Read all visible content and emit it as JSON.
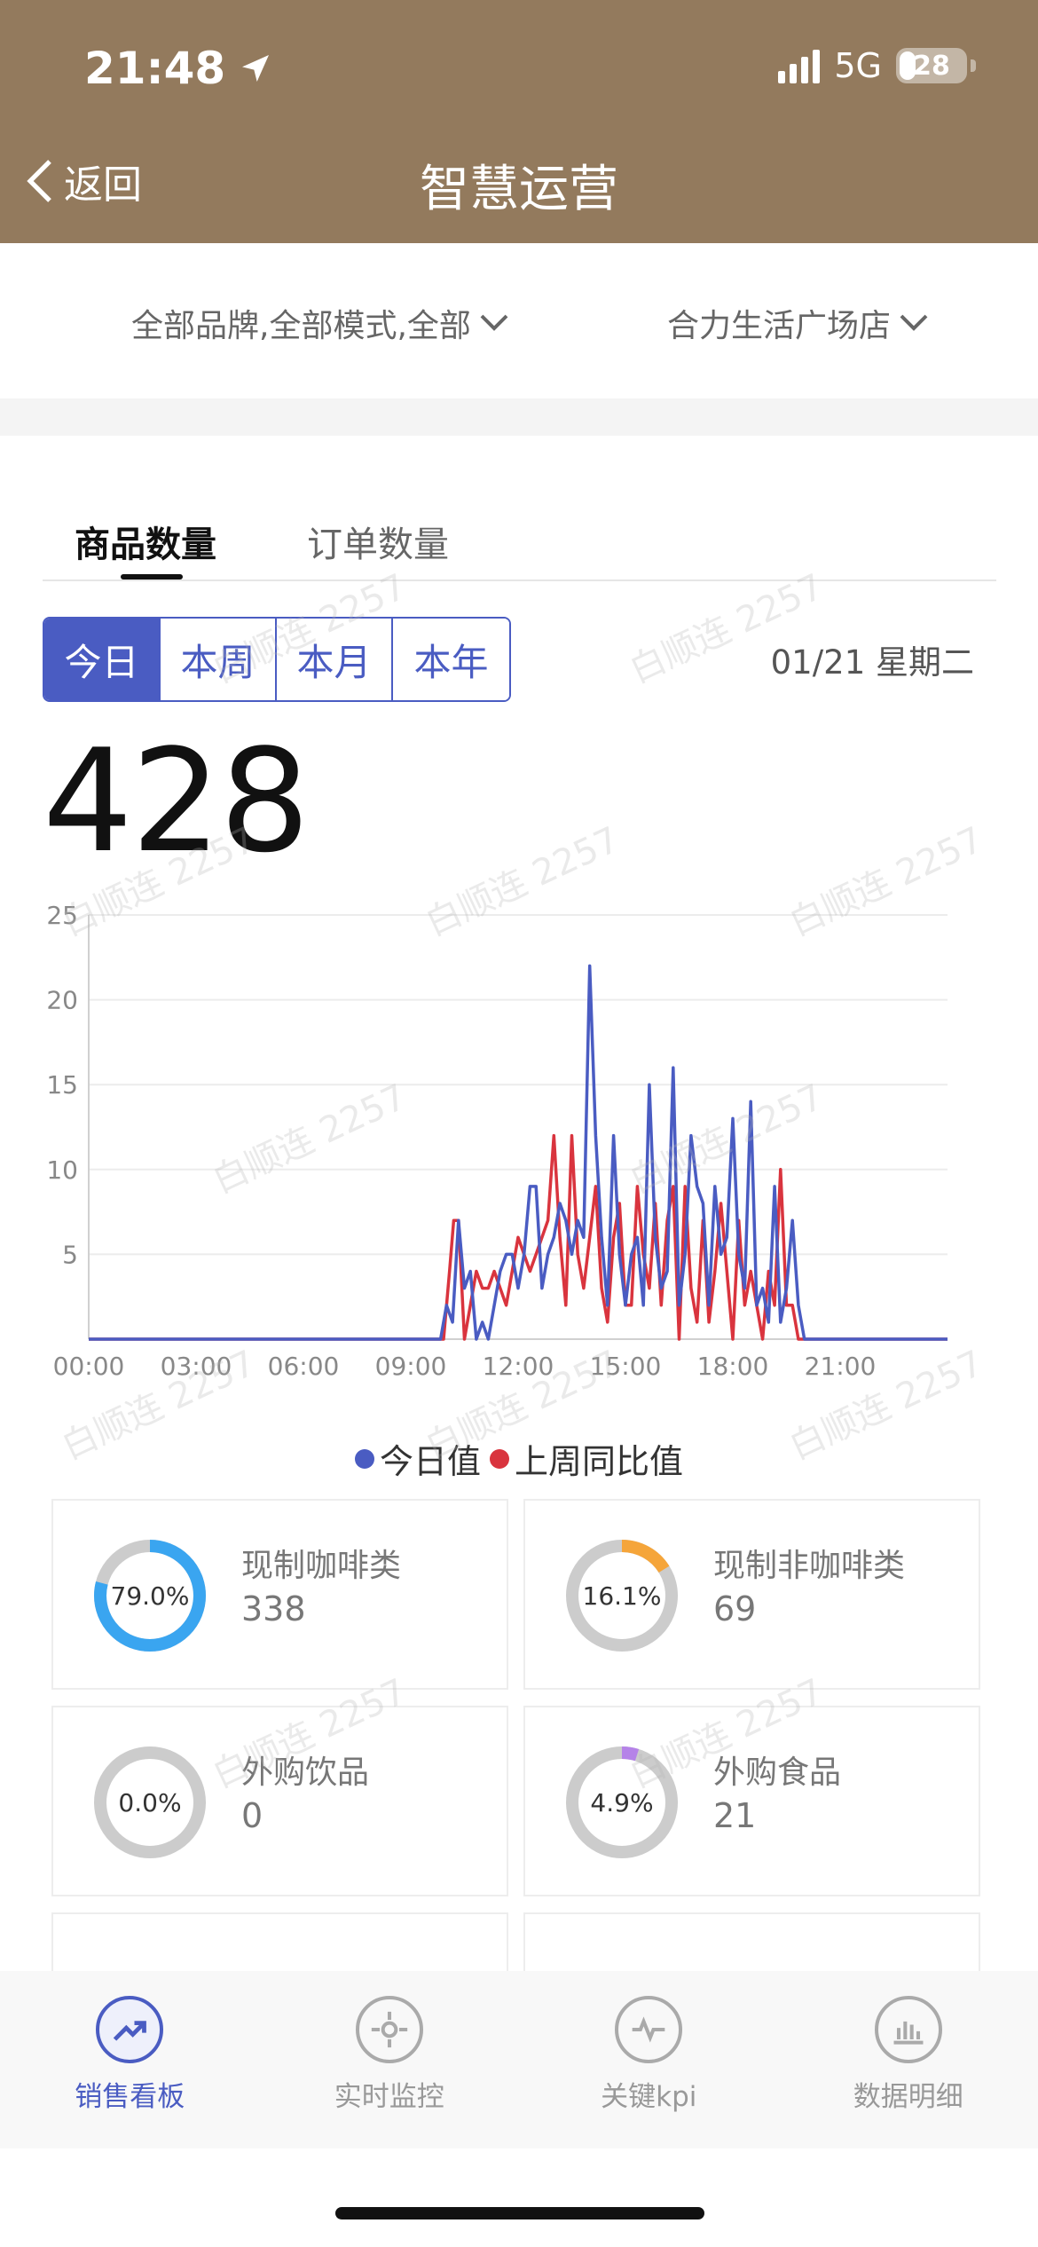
{
  "status_bar": {
    "time": "21:48",
    "network": "5G",
    "battery": "28"
  },
  "nav": {
    "back_label": "返回",
    "title": "智慧运营"
  },
  "filters": {
    "brand_mode": "全部品牌,全部模式,全部",
    "store": "合力生活广场店"
  },
  "tabs": [
    {
      "label": "商品数量",
      "active": true
    },
    {
      "label": "订单数量",
      "active": false
    }
  ],
  "period_buttons": [
    {
      "label": "今日",
      "active": true
    },
    {
      "label": "本周"
    },
    {
      "label": "本月"
    },
    {
      "label": "本年"
    }
  ],
  "date_label": "01/21 星期二",
  "total_value": "428",
  "watermark_text": "白顺连 2257",
  "chart_data": {
    "type": "line",
    "x_tick_labels": [
      "00:00",
      "03:00",
      "06:00",
      "09:00",
      "12:00",
      "15:00",
      "18:00",
      "21:00"
    ],
    "y_tick_labels": [
      "5",
      "10",
      "15",
      "20",
      "25"
    ],
    "ylim": [
      0,
      25
    ],
    "x_range_minutes": [
      0,
      1440
    ],
    "grid": true,
    "legend_position": "bottom",
    "series": [
      {
        "name": "今日值",
        "color": "#4a5cc2",
        "points": [
          [
            0,
            0
          ],
          [
            590,
            0
          ],
          [
            600,
            2
          ],
          [
            610,
            1
          ],
          [
            620,
            7
          ],
          [
            630,
            3
          ],
          [
            640,
            4
          ],
          [
            650,
            0
          ],
          [
            660,
            1
          ],
          [
            670,
            0
          ],
          [
            680,
            2
          ],
          [
            690,
            4
          ],
          [
            700,
            5
          ],
          [
            710,
            5
          ],
          [
            720,
            3
          ],
          [
            730,
            5
          ],
          [
            740,
            9
          ],
          [
            750,
            9
          ],
          [
            760,
            3
          ],
          [
            770,
            5
          ],
          [
            780,
            6
          ],
          [
            790,
            8
          ],
          [
            800,
            7
          ],
          [
            810,
            5
          ],
          [
            820,
            7
          ],
          [
            830,
            6
          ],
          [
            840,
            22
          ],
          [
            850,
            12
          ],
          [
            860,
            6
          ],
          [
            870,
            2
          ],
          [
            880,
            12
          ],
          [
            890,
            5
          ],
          [
            900,
            2
          ],
          [
            910,
            5
          ],
          [
            920,
            6
          ],
          [
            930,
            2
          ],
          [
            940,
            15
          ],
          [
            950,
            6
          ],
          [
            960,
            3
          ],
          [
            970,
            4
          ],
          [
            980,
            16
          ],
          [
            990,
            2
          ],
          [
            1000,
            5
          ],
          [
            1010,
            12
          ],
          [
            1020,
            9
          ],
          [
            1030,
            8
          ],
          [
            1040,
            2
          ],
          [
            1050,
            9
          ],
          [
            1060,
            5
          ],
          [
            1070,
            6
          ],
          [
            1080,
            13
          ],
          [
            1090,
            5
          ],
          [
            1100,
            3
          ],
          [
            1110,
            14
          ],
          [
            1120,
            2
          ],
          [
            1130,
            3
          ],
          [
            1140,
            1
          ],
          [
            1150,
            9
          ],
          [
            1160,
            1
          ],
          [
            1170,
            3
          ],
          [
            1180,
            7
          ],
          [
            1190,
            2
          ],
          [
            1200,
            0
          ],
          [
            1440,
            0
          ]
        ]
      },
      {
        "name": "上周同比值",
        "color": "#d9343e",
        "points": [
          [
            0,
            0
          ],
          [
            595,
            0
          ],
          [
            605,
            4
          ],
          [
            612,
            7
          ],
          [
            620,
            7
          ],
          [
            630,
            0
          ],
          [
            640,
            2
          ],
          [
            650,
            4
          ],
          [
            660,
            3
          ],
          [
            670,
            3
          ],
          [
            680,
            4
          ],
          [
            690,
            3
          ],
          [
            700,
            2
          ],
          [
            710,
            4
          ],
          [
            720,
            6
          ],
          [
            730,
            5
          ],
          [
            740,
            4
          ],
          [
            750,
            5
          ],
          [
            760,
            6
          ],
          [
            770,
            7
          ],
          [
            780,
            12
          ],
          [
            790,
            6
          ],
          [
            800,
            2
          ],
          [
            810,
            12
          ],
          [
            820,
            5
          ],
          [
            830,
            3
          ],
          [
            840,
            6
          ],
          [
            850,
            9
          ],
          [
            860,
            3
          ],
          [
            870,
            1
          ],
          [
            880,
            6
          ],
          [
            890,
            8
          ],
          [
            900,
            2
          ],
          [
            910,
            2
          ],
          [
            920,
            9
          ],
          [
            930,
            5
          ],
          [
            940,
            3
          ],
          [
            950,
            8
          ],
          [
            960,
            2
          ],
          [
            970,
            7
          ],
          [
            980,
            9
          ],
          [
            990,
            0
          ],
          [
            1000,
            9
          ],
          [
            1010,
            3
          ],
          [
            1020,
            1
          ],
          [
            1030,
            7
          ],
          [
            1040,
            1
          ],
          [
            1050,
            4
          ],
          [
            1060,
            8
          ],
          [
            1070,
            4
          ],
          [
            1080,
            0
          ],
          [
            1090,
            7
          ],
          [
            1100,
            2
          ],
          [
            1110,
            4
          ],
          [
            1120,
            2
          ],
          [
            1130,
            0
          ],
          [
            1140,
            4
          ],
          [
            1150,
            2
          ],
          [
            1160,
            10
          ],
          [
            1170,
            2
          ],
          [
            1180,
            2
          ],
          [
            1190,
            0
          ],
          [
            1440,
            0
          ]
        ]
      }
    ]
  },
  "categories": [
    {
      "name": "现制咖啡类",
      "value": "338",
      "percent_label": "79.0%",
      "percent": 79.0,
      "color": "#3aa5f0"
    },
    {
      "name": "现制非咖啡类",
      "value": "69",
      "percent_label": "16.1%",
      "percent": 16.1,
      "color": "#f5a53a"
    },
    {
      "name": "外购饮品",
      "value": "0",
      "percent_label": "0.0%",
      "percent": 0.0,
      "color": "#cccccc"
    },
    {
      "name": "外购食品",
      "value": "21",
      "percent_label": "4.9%",
      "percent": 4.9,
      "color": "#b583e8"
    }
  ],
  "bottom_nav": [
    {
      "label": "销售看板",
      "icon": "trend-icon",
      "active": true
    },
    {
      "label": "实时监控",
      "icon": "target-icon",
      "active": false
    },
    {
      "label": "关键kpi",
      "icon": "pulse-icon",
      "active": false
    },
    {
      "label": "数据明细",
      "icon": "bar-chart-icon",
      "active": false
    }
  ]
}
